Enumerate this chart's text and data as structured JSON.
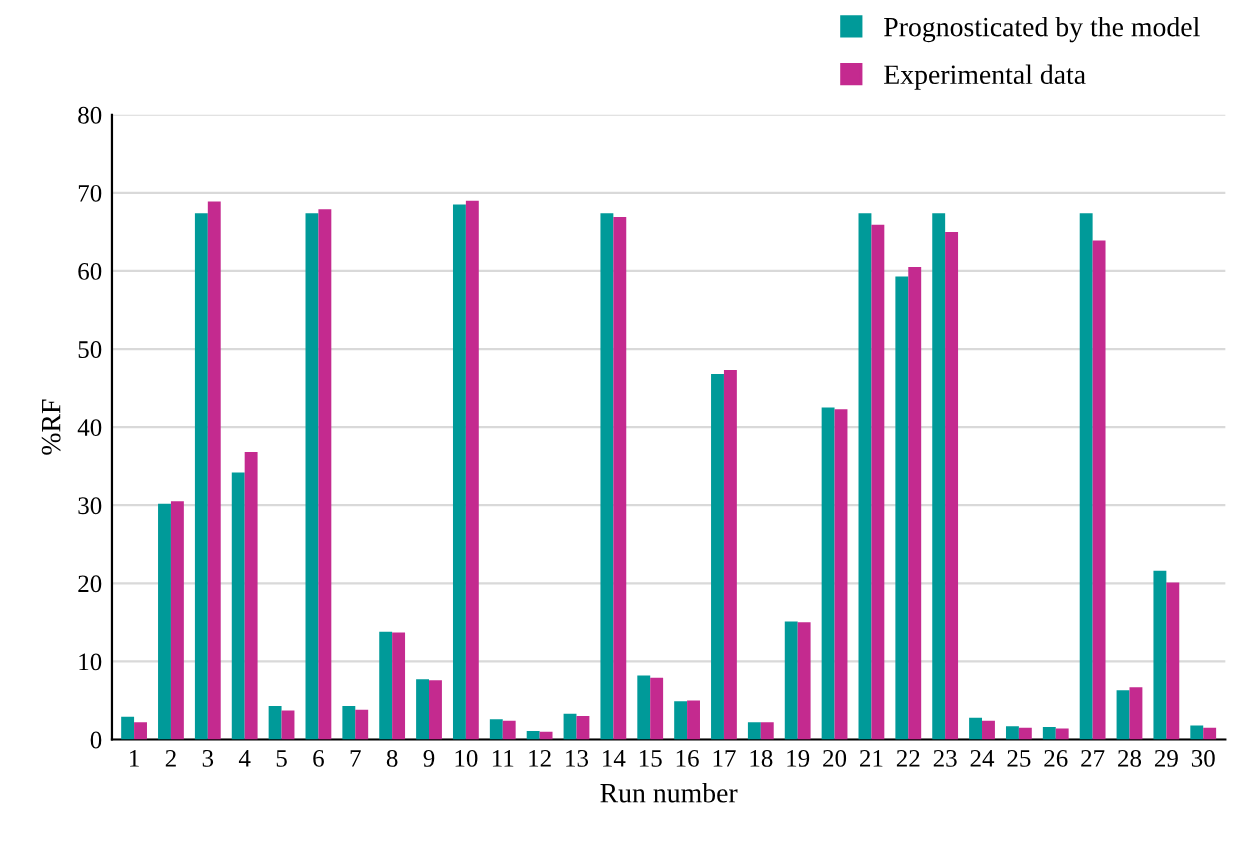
{
  "chart_data": {
    "type": "bar",
    "xlabel": "Run number",
    "ylabel": "%RF",
    "categories": [
      "1",
      "2",
      "3",
      "4",
      "5",
      "6",
      "7",
      "8",
      "9",
      "10",
      "11",
      "12",
      "13",
      "14",
      "15",
      "16",
      "17",
      "18",
      "19",
      "20",
      "21",
      "22",
      "23",
      "24",
      "25",
      "26",
      "27",
      "28",
      "29",
      "30"
    ],
    "series": [
      {
        "name": "Prognosticated by the model",
        "color": "#009a99",
        "values": [
          2.9,
          30.2,
          67.4,
          34.2,
          4.3,
          67.4,
          4.3,
          13.8,
          7.7,
          68.5,
          2.6,
          1.1,
          3.3,
          67.4,
          8.2,
          4.9,
          46.8,
          2.2,
          15.1,
          42.5,
          67.4,
          59.3,
          67.4,
          2.8,
          1.7,
          1.6,
          67.4,
          6.3,
          21.6,
          1.8
        ]
      },
      {
        "name": "Experimental data",
        "color": "#c42a8f",
        "values": [
          2.2,
          30.5,
          68.9,
          36.8,
          3.7,
          67.9,
          3.8,
          13.7,
          7.6,
          69.0,
          2.4,
          1.0,
          3.0,
          66.9,
          7.9,
          5.0,
          47.3,
          2.2,
          15.0,
          42.3,
          65.9,
          60.5,
          65.0,
          2.4,
          1.5,
          1.4,
          63.9,
          6.7,
          20.1,
          1.5
        ]
      }
    ],
    "ylim": [
      0,
      80
    ],
    "yticks": [
      0,
      10,
      20,
      30,
      40,
      50,
      60,
      70,
      80
    ],
    "grid": "y",
    "legend": "top right"
  }
}
